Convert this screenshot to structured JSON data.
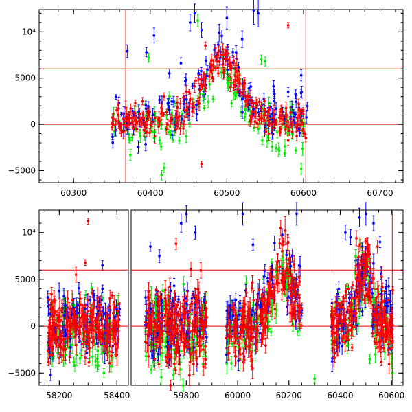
{
  "chart_data": [
    {
      "type": "scatter",
      "title": "",
      "xlabel": "",
      "ylabel": "",
      "xlim": [
        60255,
        60730
      ],
      "ylim": [
        -6300,
        12400
      ],
      "x_ticks": [
        {
          "value": 60300,
          "label": "60300"
        },
        {
          "value": 60400,
          "label": "60400"
        },
        {
          "value": 60500,
          "label": "60500"
        },
        {
          "value": 60600,
          "label": "60600"
        },
        {
          "value": 60700,
          "label": "60700"
        }
      ],
      "y_ticks": [
        {
          "value": -5000,
          "label": "−5000"
        },
        {
          "value": 0,
          "label": "0"
        },
        {
          "value": 5000,
          "label": "5000"
        },
        {
          "value": 10000,
          "label": "10⁴"
        }
      ],
      "reference_lines": {
        "horizontal": [
          0,
          6000
        ],
        "vertical": [
          60368,
          60603
        ]
      },
      "series_colors": {
        "blue": "#0000ff",
        "green": "#00ee00",
        "red": "#ff0000"
      },
      "series": [
        {
          "color": "blue",
          "points": [
            {
              "x": 60370,
              "y": 7900,
              "err": 700
            },
            {
              "x": 60395,
              "y": 7800,
              "err": 500
            },
            {
              "x": 60405,
              "y": 9600,
              "err": 800
            },
            {
              "x": 60425,
              "y": 5500,
              "err": 500
            },
            {
              "x": 60440,
              "y": 6600,
              "err": 600
            },
            {
              "x": 60452,
              "y": 11000,
              "err": 900
            },
            {
              "x": 60458,
              "y": 12000,
              "err": 1000
            },
            {
              "x": 60467,
              "y": 10200,
              "err": 800
            },
            {
              "x": 60490,
              "y": 9900,
              "err": 900
            },
            {
              "x": 60500,
              "y": 11500,
              "err": 1200
            },
            {
              "x": 60512,
              "y": 7800,
              "err": 700
            },
            {
              "x": 60520,
              "y": 9200,
              "err": 900
            },
            {
              "x": 60535,
              "y": 12300,
              "err": 1500
            },
            {
              "x": 60541,
              "y": 12000,
              "err": 1500
            },
            {
              "x": 60562,
              "y": 3300,
              "err": 500
            },
            {
              "x": 60580,
              "y": 3500,
              "err": 500
            },
            {
              "x": 60597,
              "y": 5300,
              "err": 600
            }
          ]
        },
        {
          "color": "green",
          "points": [
            {
              "x": 60374,
              "y": -3300,
              "err": 600
            },
            {
              "x": 60398,
              "y": 7200,
              "err": 500
            },
            {
              "x": 60415,
              "y": -5500,
              "err": 500
            },
            {
              "x": 60462,
              "y": 11200,
              "err": 700
            },
            {
              "x": 60470,
              "y": 2800,
              "err": 500
            },
            {
              "x": 60503,
              "y": 5000,
              "err": 500
            },
            {
              "x": 60545,
              "y": 7000,
              "err": 500
            },
            {
              "x": 60550,
              "y": 6800,
              "err": 500
            },
            {
              "x": 60597,
              "y": -4800,
              "err": 600
            },
            {
              "x": 60418,
              "y": -4700,
              "err": 500
            }
          ]
        },
        {
          "color": "red",
          "points": [
            {
              "x": 60390,
              "y": 2500,
              "err": 400
            },
            {
              "x": 60418,
              "y": 3000,
              "err": 400
            },
            {
              "x": 60467,
              "y": -4300,
              "err": 300
            },
            {
              "x": 60472,
              "y": 8500,
              "err": 400
            },
            {
              "x": 60485,
              "y": 8200,
              "err": 400
            },
            {
              "x": 60580,
              "y": 10700,
              "err": 300
            },
            {
              "x": 60603,
              "y": -1500,
              "err": 400
            }
          ]
        }
      ],
      "dense_band": {
        "x_start": 60350,
        "x_end": 60605,
        "peak_x": 60492,
        "peak_y": 6500,
        "width": 25
      }
    },
    {
      "type": "scatter",
      "title": "",
      "xlabel": "",
      "ylabel": "",
      "ylim": [
        -6300,
        12400
      ],
      "x_ticks": [
        {
          "value": 58200,
          "label": "58200"
        },
        {
          "value": 58400,
          "label": "58400"
        },
        {
          "value": 59800,
          "label": "59800"
        },
        {
          "value": 60000,
          "label": "60000"
        },
        {
          "value": 60200,
          "label": "60200"
        },
        {
          "value": 60400,
          "label": "60400"
        },
        {
          "value": 60600,
          "label": "60600"
        }
      ],
      "y_ticks": [
        {
          "value": -5000,
          "label": "−5000"
        },
        {
          "value": 0,
          "label": "0"
        },
        {
          "value": 5000,
          "label": "5000"
        },
        {
          "value": 10000,
          "label": "10⁴"
        }
      ],
      "segments": [
        {
          "xlim": [
            58130,
            58440
          ]
        },
        {
          "xlim": [
            59585,
            60645
          ]
        }
      ],
      "reference_lines": {
        "horizontal": [
          0,
          6000
        ],
        "vertical": [
          60368,
          60603
        ]
      },
      "series_colors": {
        "blue": "#0000ff",
        "green": "#00ee00",
        "red": "#ff0000"
      },
      "clusters": [
        {
          "x_start": 58160,
          "x_end": 58410,
          "spread": 1600
        },
        {
          "x_start": 59640,
          "x_end": 59880,
          "spread": 2000
        },
        {
          "x_start": 59955,
          "x_end": 60250,
          "spread": 1800,
          "peak_x": 60175,
          "peak_y": 6000,
          "width": 45
        },
        {
          "x_start": 60365,
          "x_end": 60605,
          "spread": 1800,
          "peak_x": 60492,
          "peak_y": 6000,
          "width": 30
        }
      ],
      "series": [
        {
          "color": "red",
          "points": [
            {
              "x": 58300,
              "y": 11200,
              "err": 300
            },
            {
              "x": 58290,
              "y": 6800,
              "err": 300
            },
            {
              "x": 58258,
              "y": 5500,
              "err": 800
            },
            {
              "x": 59760,
              "y": 8800,
              "err": 600
            },
            {
              "x": 60185,
              "y": 10200,
              "err": 1500
            },
            {
              "x": 60195,
              "y": 8800,
              "err": 1000
            },
            {
              "x": 60545,
              "y": 8500,
              "err": 700
            },
            {
              "x": 60463,
              "y": 9400,
              "err": 800
            },
            {
              "x": 60560,
              "y": -3800,
              "err": 400
            }
          ]
        },
        {
          "color": "blue",
          "points": [
            {
              "x": 58170,
              "y": -5200,
              "err": 600
            },
            {
              "x": 58350,
              "y": 6500,
              "err": 500
            },
            {
              "x": 58320,
              "y": 3300,
              "err": 500
            },
            {
              "x": 58350,
              "y": 4000,
              "err": 400
            },
            {
              "x": 59660,
              "y": 8500,
              "err": 500
            },
            {
              "x": 59695,
              "y": 7500,
              "err": 700
            },
            {
              "x": 59780,
              "y": 11000,
              "err": 1000
            },
            {
              "x": 59800,
              "y": 12000,
              "err": 900
            },
            {
              "x": 59835,
              "y": 10000,
              "err": 700
            },
            {
              "x": 60020,
              "y": 12000,
              "err": 1200
            },
            {
              "x": 60060,
              "y": 8700,
              "err": 600
            },
            {
              "x": 60230,
              "y": 12000,
              "err": 1200
            },
            {
              "x": 60240,
              "y": 6500,
              "err": 800
            },
            {
              "x": 60420,
              "y": 10000,
              "err": 800
            },
            {
              "x": 60440,
              "y": 9500,
              "err": 800
            },
            {
              "x": 60475,
              "y": 11600,
              "err": 1000
            },
            {
              "x": 60500,
              "y": 12000,
              "err": 1200
            },
            {
              "x": 60530,
              "y": 11000,
              "err": 800
            },
            {
              "x": 60555,
              "y": 9000,
              "err": 600
            }
          ]
        },
        {
          "color": "green",
          "points": [
            {
              "x": 58250,
              "y": -3800,
              "err": 500
            },
            {
              "x": 58355,
              "y": -5000,
              "err": 500
            },
            {
              "x": 58380,
              "y": -4300,
              "err": 600
            },
            {
              "x": 59680,
              "y": 2000,
              "err": 1200
            },
            {
              "x": 59750,
              "y": -5200,
              "err": 500
            },
            {
              "x": 59790,
              "y": 4500,
              "err": 800
            },
            {
              "x": 60150,
              "y": 5800,
              "err": 700
            },
            {
              "x": 60300,
              "y": -5600,
              "err": 500
            },
            {
              "x": 60460,
              "y": 7500,
              "err": 700
            },
            {
              "x": 60515,
              "y": -3500,
              "err": 500
            },
            {
              "x": 60603,
              "y": -5000,
              "err": 500
            }
          ]
        }
      ]
    }
  ]
}
